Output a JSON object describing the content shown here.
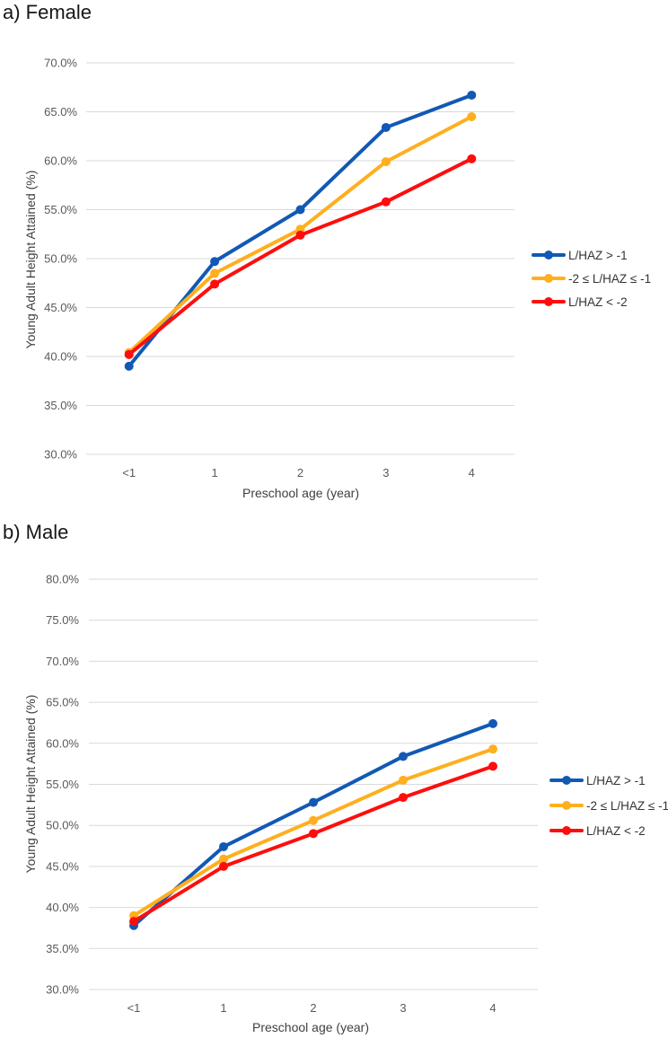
{
  "chart_data": [
    {
      "type": "line",
      "title": "a) Female",
      "xlabel": "Preschool age (year)",
      "ylabel": "Young Adult Height Attained (%)",
      "categories": [
        "<1",
        "1",
        "2",
        "3",
        "4"
      ],
      "ylim": [
        30,
        70
      ],
      "y_tick_step": 5,
      "y_tick_labels": [
        "70.0%",
        "65.0%",
        "60.0%",
        "55.0%",
        "50.0%",
        "45.0%",
        "40.0%",
        "35.0%",
        "30.0%"
      ],
      "grid": true,
      "legend_position": "right",
      "series": [
        {
          "name": "L/HAZ > -1",
          "color": "#1159B4",
          "marker": "circle",
          "values": [
            39.0,
            49.7,
            55.0,
            63.4,
            66.7
          ]
        },
        {
          "name": "-2 ≤ L/HAZ ≤ -1",
          "color": "#FFAF1E",
          "marker": "circle",
          "values": [
            40.4,
            48.5,
            53.0,
            59.9,
            64.5
          ]
        },
        {
          "name": "L/HAZ < -2",
          "color": "#FF0D0D",
          "marker": "circle",
          "values": [
            40.2,
            47.4,
            52.4,
            55.8,
            60.2
          ]
        }
      ]
    },
    {
      "type": "line",
      "title": "b) Male",
      "xlabel": "Preschool age (year)",
      "ylabel": "Young Adult Height Attained (%)",
      "categories": [
        "<1",
        "1",
        "2",
        "3",
        "4"
      ],
      "ylim": [
        30,
        80
      ],
      "y_tick_step": 5,
      "y_tick_labels": [
        "80.0%",
        "75.0%",
        "70.0%",
        "65.0%",
        "60.0%",
        "55.0%",
        "50.0%",
        "45.0%",
        "40.0%",
        "35.0%",
        "30.0%"
      ],
      "grid": true,
      "legend_position": "right",
      "series": [
        {
          "name": "L/HAZ > -1",
          "color": "#1159B4",
          "marker": "circle",
          "values": [
            37.8,
            47.4,
            52.8,
            58.4,
            62.4
          ]
        },
        {
          "name": "-2 ≤ L/HAZ ≤ -1",
          "color": "#FFAF1E",
          "marker": "circle",
          "values": [
            39.0,
            45.9,
            50.6,
            55.5,
            59.3
          ]
        },
        {
          "name": "L/HAZ < -2",
          "color": "#FF0D0D",
          "marker": "circle",
          "values": [
            38.3,
            45.0,
            49.0,
            53.4,
            57.2
          ]
        }
      ]
    }
  ],
  "style_tokens": {
    "gridline_color": "#d9d9d9",
    "tick_label_color": "#595959",
    "axis_title_color": "#3f3f3f",
    "title_color": "#161616"
  }
}
